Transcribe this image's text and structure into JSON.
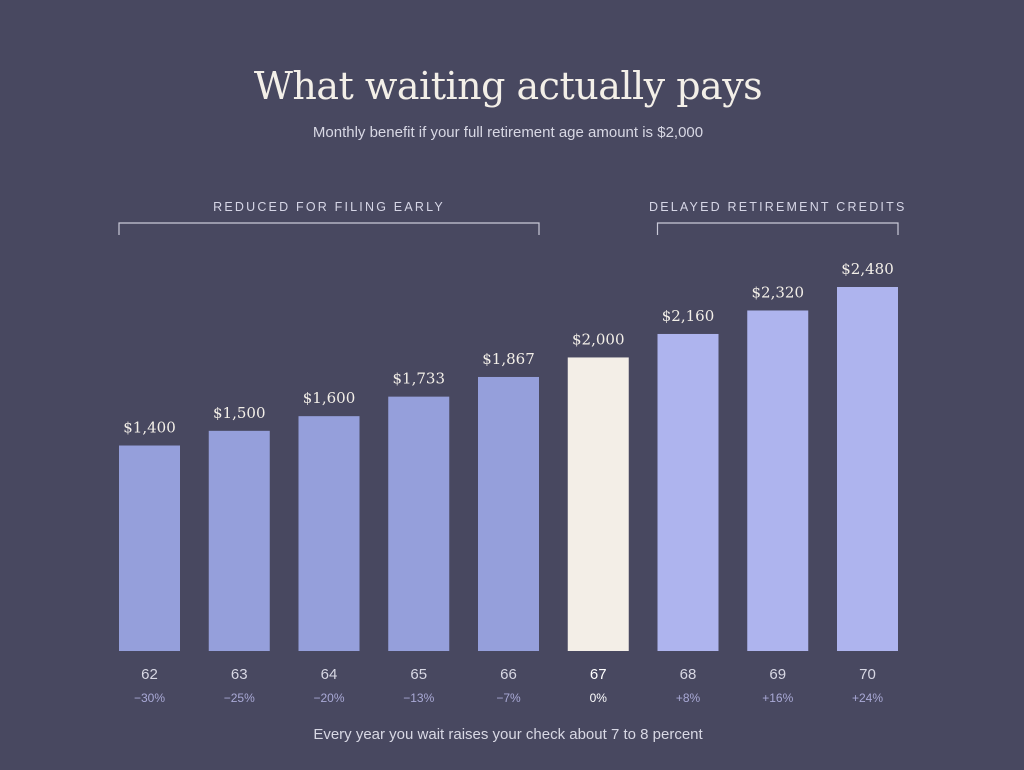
{
  "title": "What waiting actually pays",
  "subtitle": "Monthly benefit if your full retirement age amount is $2,000",
  "footer": "Every year you wait raises your check about 7 to 8 percent",
  "colors": {
    "background": "#484860",
    "early": "#959fdb",
    "full": "#f3eee7",
    "delayed": "#aeb4ee"
  },
  "chart_data": {
    "type": "bar",
    "categories": [
      "62",
      "63",
      "64",
      "65",
      "66",
      "67",
      "68",
      "69",
      "70"
    ],
    "values": [
      1400,
      1500,
      1600,
      1733,
      1867,
      2000,
      2160,
      2320,
      2480
    ],
    "value_labels": [
      "$1,400",
      "$1,500",
      "$1,600",
      "$1,733",
      "$1,867",
      "$2,000",
      "$2,160",
      "$2,320",
      "$2,480"
    ],
    "pct_labels": [
      "−30%",
      "−25%",
      "−20%",
      "−13%",
      "−7%",
      "0%",
      "+8%",
      "+16%",
      "+24%"
    ],
    "highlight_index": 5,
    "groups": [
      {
        "label": "REDUCED FOR FILING EARLY",
        "start": 0,
        "end": 4,
        "kind": "early"
      },
      {
        "label": "DELAYED RETIREMENT CREDITS",
        "start": 6,
        "end": 8,
        "kind": "delayed"
      }
    ],
    "ylim": [
      0,
      2480
    ],
    "grid": false,
    "legend": "none"
  }
}
